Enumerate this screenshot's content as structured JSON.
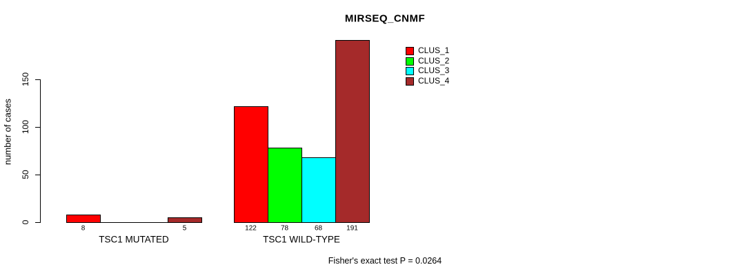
{
  "chart_data": {
    "type": "bar",
    "title": "MIRSEQ_CNMF",
    "ylabel": "number of cases",
    "ylim": [
      0,
      150
    ],
    "yticks": [
      0,
      50,
      100,
      150
    ],
    "grid": false,
    "legend_position": "top-right",
    "categories": [
      "TSC1 MUTATED",
      "TSC1 WILD-TYPE"
    ],
    "series": [
      {
        "name": "CLUS_1",
        "color": "#ff0000",
        "values": [
          8,
          122
        ]
      },
      {
        "name": "CLUS_2",
        "color": "#00ff00",
        "values": [
          0,
          78
        ]
      },
      {
        "name": "CLUS_3",
        "color": "#00ffff",
        "values": [
          0,
          68
        ]
      },
      {
        "name": "CLUS_4",
        "color": "#a52a2a",
        "values": [
          5,
          191
        ]
      }
    ],
    "bar_value_labels_visible": [
      8,
      5,
      122,
      78,
      68,
      191
    ],
    "annotation": "Fisher's exact test P = 0.0264"
  },
  "colors": {
    "background": "#ffffff",
    "axis": "#000000",
    "text": "#000000"
  }
}
